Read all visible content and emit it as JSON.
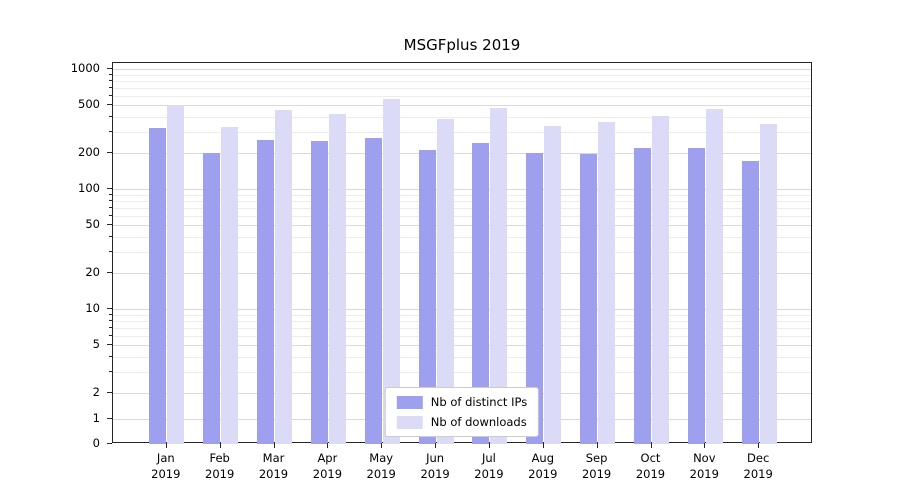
{
  "chart_data": {
    "type": "bar",
    "title": "MSGFplus 2019",
    "xlabel": "",
    "ylabel": "",
    "yscale": "symlog",
    "ylim": [
      0,
      1000
    ],
    "grid": true,
    "legend_position": "lower center",
    "categories": [
      "Jan 2019",
      "Feb 2019",
      "Mar 2019",
      "Apr 2019",
      "May 2019",
      "Jun 2019",
      "Jul 2019",
      "Aug 2019",
      "Sep 2019",
      "Oct 2019",
      "Nov 2019",
      "Dec 2019"
    ],
    "yticks": [
      0,
      1,
      2,
      5,
      10,
      20,
      50,
      100,
      200,
      500,
      1000
    ],
    "minor_yticks": [
      3,
      4,
      6,
      7,
      8,
      9,
      30,
      40,
      60,
      70,
      80,
      90,
      300,
      400,
      600,
      700,
      800,
      900
    ],
    "series": [
      {
        "name": "Nb of distinct IPs",
        "color": "#9f9fef",
        "values": [
          320,
          200,
          255,
          250,
          265,
          210,
          240,
          200,
          197,
          220,
          218,
          172
        ]
      },
      {
        "name": "Nb of downloads",
        "color": "#dbdbf8",
        "values": [
          500,
          330,
          460,
          420,
          560,
          380,
          475,
          335,
          360,
          410,
          465,
          350
        ]
      }
    ]
  },
  "colors": {
    "grid_major": "#d9d9d9",
    "grid_minor": "#ececec",
    "spine": "#262626",
    "background": "#ffffff"
  }
}
